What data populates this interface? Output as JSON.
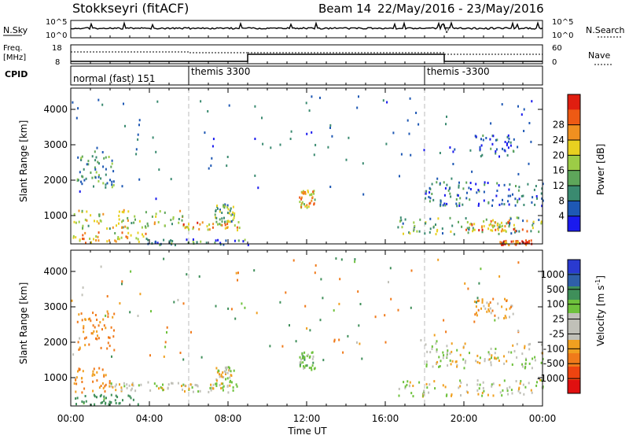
{
  "header": {
    "station": "Stokkseyri (fitACF)",
    "beam": "Beam 14",
    "date_range": "22/May/2016 - 23/May/2016"
  },
  "top_panels": {
    "nsky_label": "N.Sky",
    "nsky_ticks": [
      "10^5",
      "10^0"
    ],
    "nsearch_label": "N.Search",
    "nsearch_ticks": [
      "10^5",
      "10^0"
    ],
    "freq_label": "Freq.",
    "freq_unit": "[MHz]",
    "freq_ticks": [
      "18",
      "8"
    ],
    "nave_label": "Nave",
    "nave_ticks": [
      "60",
      "0"
    ],
    "cpid_label": "CPID",
    "cpid_segments": [
      {
        "label": "normal (fast) 151",
        "start_hour": 0
      },
      {
        "label": "themis 3300",
        "start_hour": 6
      },
      {
        "label": "themis -3300",
        "start_hour": 18
      }
    ]
  },
  "colors": {
    "power_scale": [
      "#1a1aee",
      "#1e58b4",
      "#3a8a70",
      "#5ea65a",
      "#9ccc46",
      "#e8d020",
      "#f09020",
      "#ee5a14",
      "#e01e10"
    ],
    "velocity_scale": [
      "#2a3ad0",
      "#2f5fa8",
      "#3f8f5a",
      "#6ec13c",
      "#c0c0b8",
      "#c0c0b8",
      "#f0a020",
      "#f07a1a",
      "#ee4410",
      "#e01010"
    ]
  },
  "chart_data": [
    {
      "type": "heatmap",
      "parameter": "Power",
      "ylabel": "Slant Range [km]",
      "y_ticks": [
        1000,
        2000,
        3000,
        4000
      ],
      "ylim": [
        200,
        4600
      ],
      "xlim": [
        0,
        24
      ],
      "x_ticks": [
        "00:00",
        "04:00",
        "08:00",
        "12:00",
        "16:00",
        "20:00",
        "00:00"
      ],
      "colorbar_label": "Power [dB]",
      "colorbar_ticks": [
        "4",
        "8",
        "12",
        "16",
        "20",
        "24",
        "28"
      ],
      "colorbar_range": [
        0,
        30
      ],
      "regions": [
        {
          "t": [
            0.1,
            5.7
          ],
          "r": [
            650,
            1200
          ],
          "level": 16
        },
        {
          "t": [
            0.1,
            3.8
          ],
          "r": [
            260,
            560
          ],
          "level": 20
        },
        {
          "t": [
            3.8,
            9.0
          ],
          "r": [
            200,
            380
          ],
          "level": 8
        },
        {
          "t": [
            5.4,
            8.6
          ],
          "r": [
            620,
            870
          ],
          "level": 20
        },
        {
          "t": [
            0.3,
            2.2
          ],
          "r": [
            1800,
            2900
          ],
          "level": 10
        },
        {
          "t": [
            7.3,
            8.3
          ],
          "r": [
            850,
            1350
          ],
          "level": 12
        },
        {
          "t": [
            11.6,
            12.4
          ],
          "r": [
            1250,
            1750
          ],
          "level": 20
        },
        {
          "t": [
            16.6,
            24.0
          ],
          "r": [
            500,
            980
          ],
          "level": 12
        },
        {
          "t": [
            20.0,
            23.2
          ],
          "r": [
            580,
            900
          ],
          "level": 22
        },
        {
          "t": [
            21.8,
            23.5
          ],
          "r": [
            200,
            330
          ],
          "level": 26
        },
        {
          "t": [
            18.0,
            24.0
          ],
          "r": [
            1300,
            2000
          ],
          "level": 6
        },
        {
          "t": [
            20.5,
            22.6
          ],
          "r": [
            2700,
            3300
          ],
          "level": 5
        }
      ]
    },
    {
      "type": "heatmap",
      "parameter": "Velocity",
      "ylabel": "Slant Range [km]",
      "y_ticks": [
        1000,
        2000,
        3000,
        4000
      ],
      "ylim": [
        200,
        4600
      ],
      "xlim": [
        0,
        24
      ],
      "x_ticks": [
        "00:00",
        "04:00",
        "08:00",
        "12:00",
        "16:00",
        "20:00",
        "00:00"
      ],
      "xlabel": "Time UT",
      "colorbar_label": "Velocity [m s^-1]",
      "colorbar_ticks": [
        "1000",
        "500",
        "100",
        "25",
        "-25",
        "-100",
        "-500",
        "-1000"
      ],
      "colorbar_range": [
        -1000,
        1000
      ],
      "regions": [
        {
          "t": [
            0.1,
            2.0
          ],
          "r": [
            600,
            1350
          ],
          "level": -100
        },
        {
          "t": [
            2.0,
            5.6
          ],
          "r": [
            650,
            900
          ],
          "level": 0
        },
        {
          "t": [
            0.1,
            3.5
          ],
          "r": [
            250,
            550
          ],
          "level": 150
        },
        {
          "t": [
            5.5,
            8.5
          ],
          "r": [
            600,
            870
          ],
          "level": 0
        },
        {
          "t": [
            0.3,
            2.2
          ],
          "r": [
            1800,
            2900
          ],
          "level": -100
        },
        {
          "t": [
            7.3,
            8.3
          ],
          "r": [
            850,
            1350
          ],
          "level": 0
        },
        {
          "t": [
            11.6,
            12.4
          ],
          "r": [
            1250,
            1750
          ],
          "level": 60
        },
        {
          "t": [
            16.6,
            24.0
          ],
          "r": [
            500,
            980
          ],
          "level": 0
        },
        {
          "t": [
            18.0,
            24.0
          ],
          "r": [
            1300,
            2000
          ],
          "level": 0
        },
        {
          "t": [
            20.5,
            22.6
          ],
          "r": [
            2700,
            3300
          ],
          "level": -60
        }
      ]
    }
  ]
}
